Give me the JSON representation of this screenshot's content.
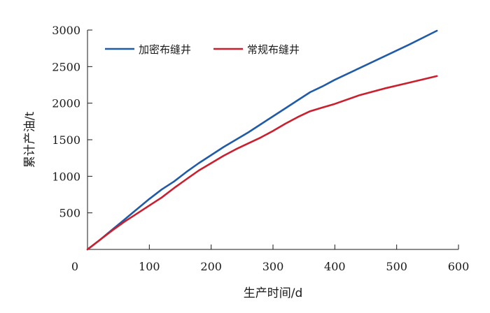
{
  "chart_data": {
    "type": "line",
    "title": "",
    "xlabel": "生产时间/d",
    "ylabel": "累计产油/t",
    "xlim": [
      0,
      600
    ],
    "ylim": [
      0,
      3000
    ],
    "x_ticks": [
      "0",
      "100",
      "200",
      "300",
      "400",
      "500",
      "600"
    ],
    "y_ticks": [
      "500",
      "1000",
      "1500",
      "2000",
      "2500",
      "3000"
    ],
    "grid": false,
    "legend_position": "top-left",
    "series": [
      {
        "name": "加密布缝井",
        "color": "#1f5ba8",
        "x": [
          0,
          20,
          40,
          60,
          80,
          100,
          120,
          140,
          160,
          180,
          200,
          220,
          240,
          260,
          280,
          300,
          320,
          340,
          360,
          380,
          400,
          440,
          480,
          520,
          565
        ],
        "y": [
          0,
          130,
          270,
          410,
          550,
          690,
          820,
          930,
          1060,
          1180,
          1290,
          1400,
          1500,
          1600,
          1710,
          1820,
          1930,
          2040,
          2150,
          2230,
          2320,
          2480,
          2640,
          2800,
          2990
        ]
      },
      {
        "name": "常规布缝井",
        "color": "#cc1f2e",
        "x": [
          0,
          20,
          40,
          60,
          80,
          100,
          120,
          140,
          160,
          180,
          200,
          220,
          240,
          260,
          280,
          300,
          320,
          340,
          360,
          380,
          400,
          440,
          480,
          520,
          565
        ],
        "y": [
          0,
          130,
          260,
          380,
          490,
          600,
          710,
          840,
          960,
          1080,
          1180,
          1280,
          1370,
          1450,
          1530,
          1620,
          1720,
          1810,
          1890,
          1940,
          1990,
          2110,
          2200,
          2280,
          2370
        ]
      }
    ]
  }
}
